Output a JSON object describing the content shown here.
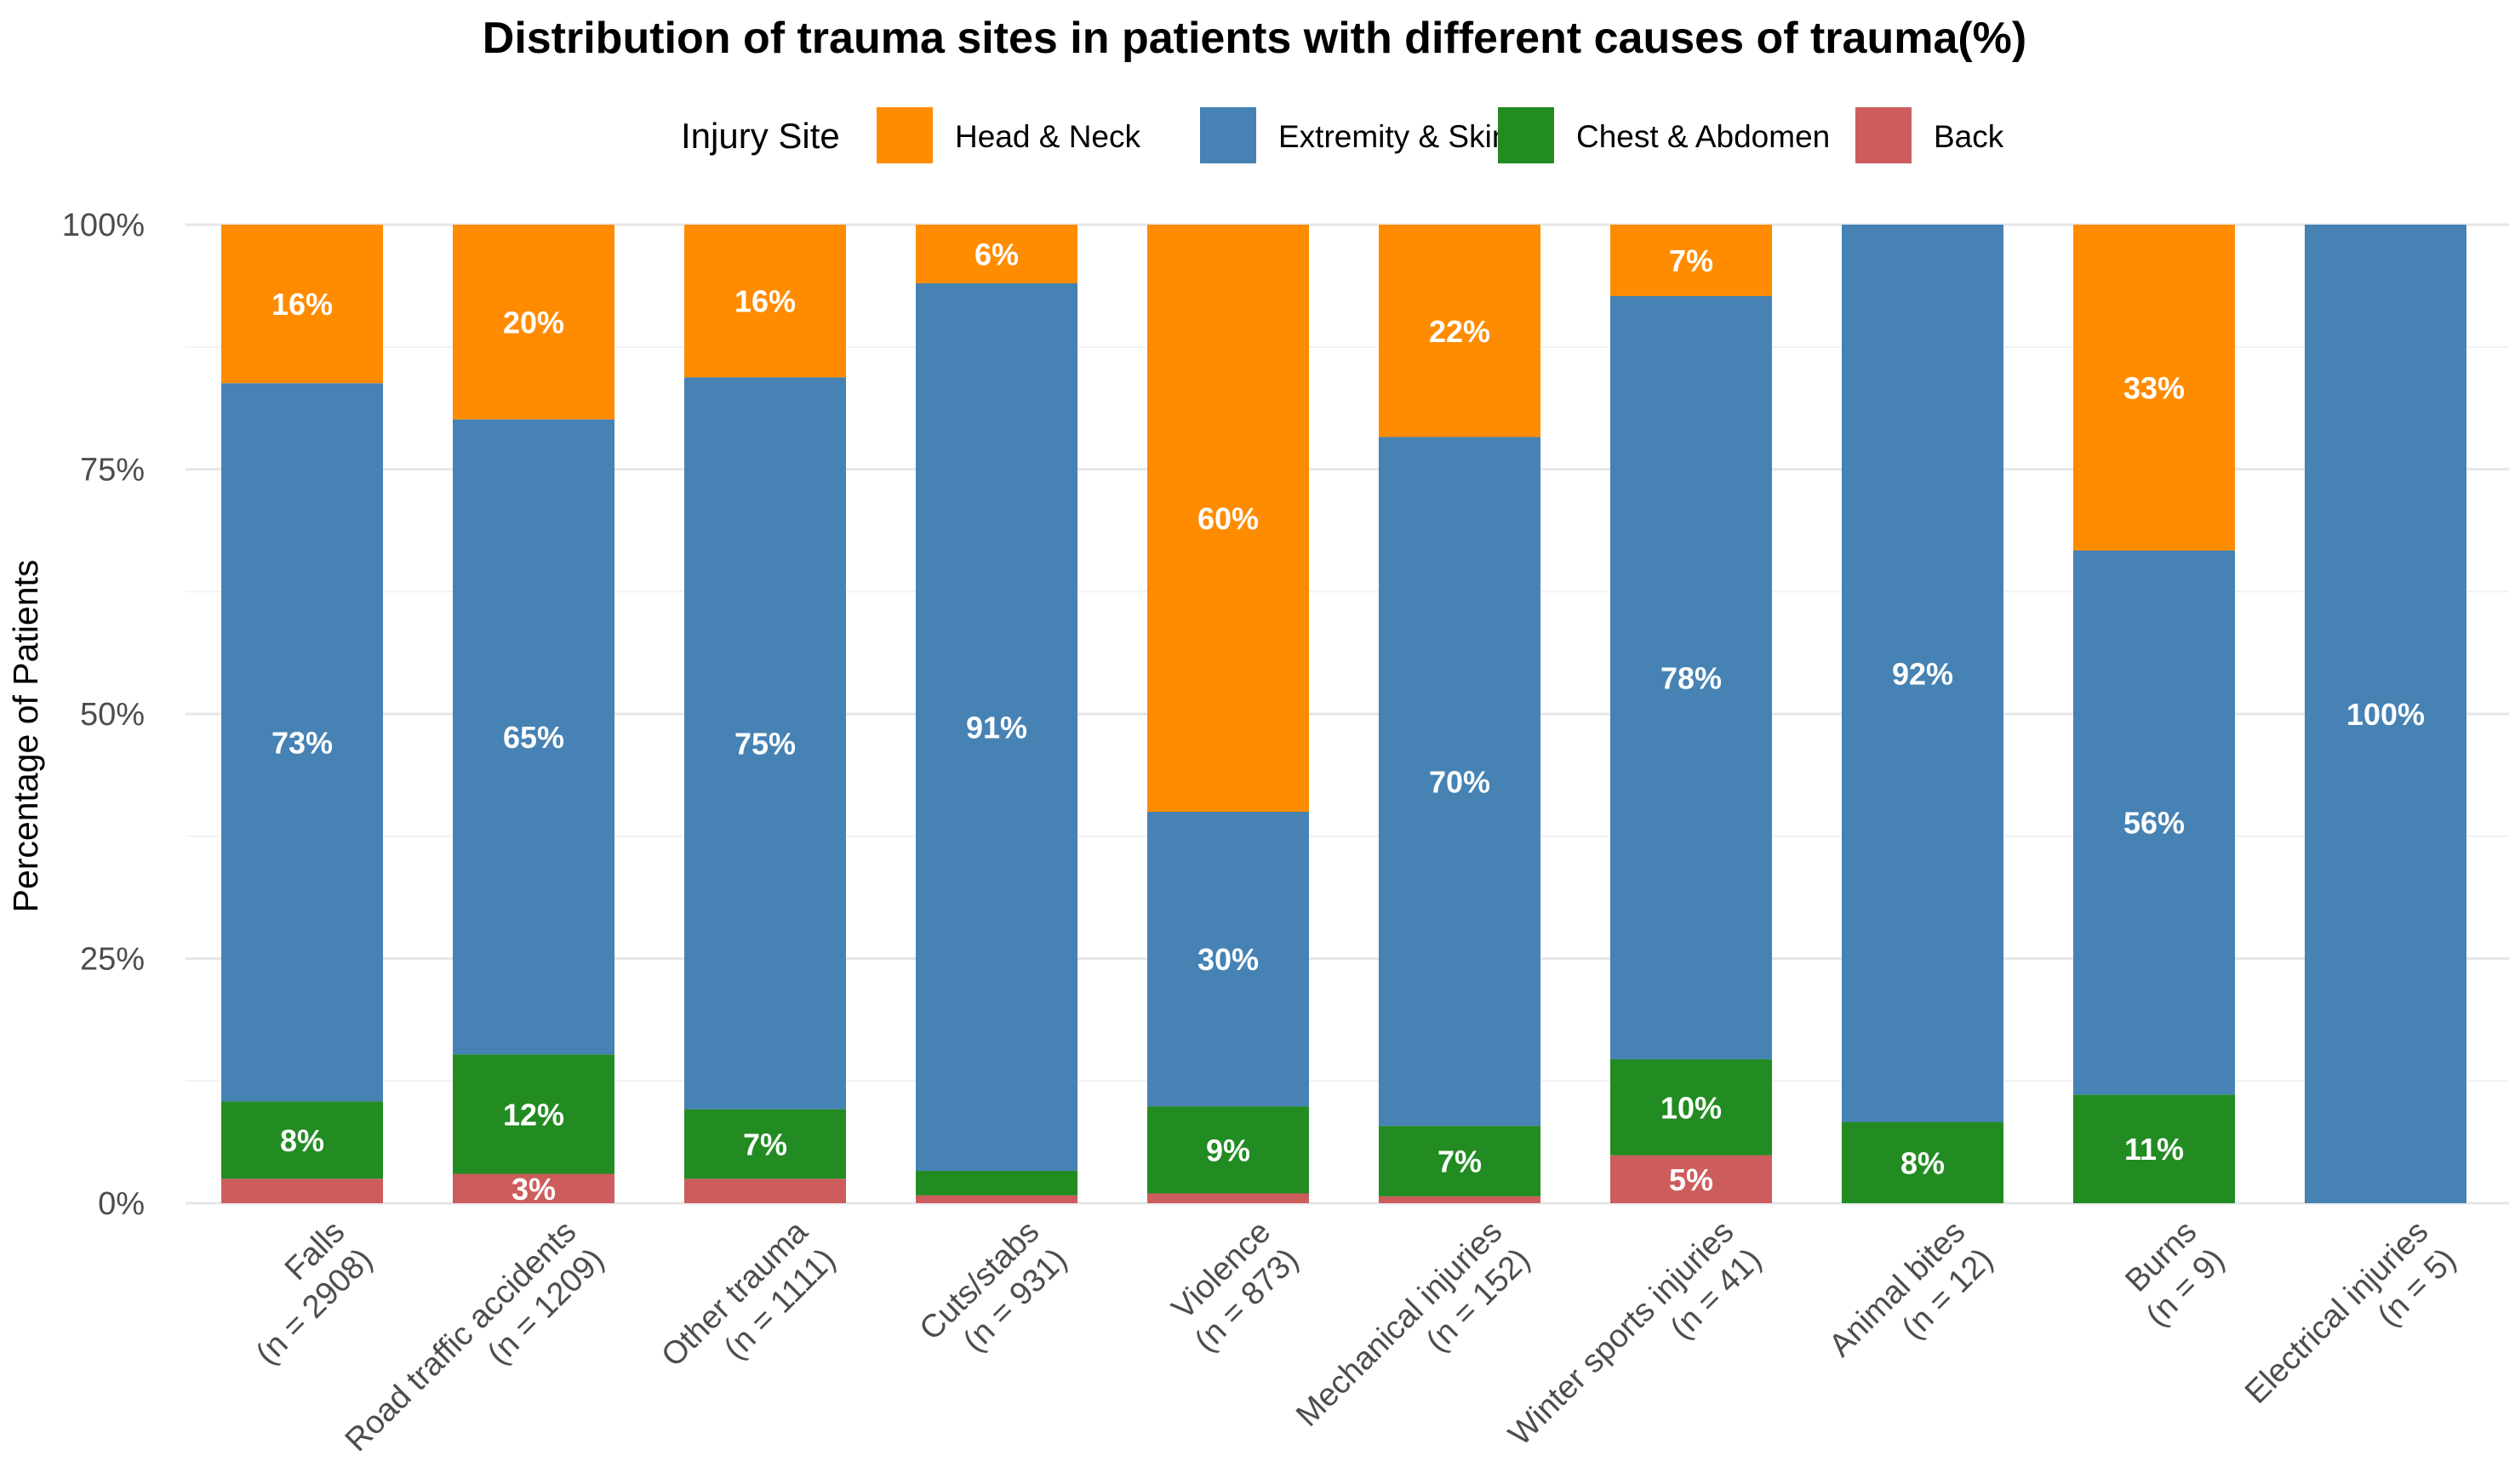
{
  "chart_data": {
    "type": "bar",
    "stacked": true,
    "title": "Distribution of trauma sites in patients with different causes of trauma(%)",
    "ylabel": "Percentage of Patients",
    "xlabel": "",
    "ylim": [
      0,
      100
    ],
    "yticks": [
      0,
      25,
      50,
      75,
      100
    ],
    "ytick_labels": [
      "0%",
      "25%",
      "50%",
      "75%",
      "100%"
    ],
    "grid": true,
    "legend": {
      "title": "Injury Site",
      "position": "top"
    },
    "categories": [
      {
        "name": "Falls",
        "n": "(n = 2908)"
      },
      {
        "name": "Road traffic accidents",
        "n": "(n = 1209)"
      },
      {
        "name": "Other trauma",
        "n": "(n = 1111)"
      },
      {
        "name": "Cuts/stabs",
        "n": "(n = 931)"
      },
      {
        "name": "Violence",
        "n": "(n = 873)"
      },
      {
        "name": "Mechanical injuries",
        "n": "(n = 152)"
      },
      {
        "name": "Winter sports injuries",
        "n": "(n = 41)"
      },
      {
        "name": "Animal bites",
        "n": "(n = 12)"
      },
      {
        "name": "Burns",
        "n": "(n = 9)"
      },
      {
        "name": "Electrical injuries",
        "n": "(n = 5)"
      }
    ],
    "series": [
      {
        "name": "Back",
        "color": "#cd5c5c",
        "values": [
          2.5,
          3,
          2.5,
          0.8,
          1,
          0.7,
          4.9,
          0,
          0,
          0
        ],
        "labels": [
          "",
          "3%",
          "",
          "",
          "",
          "",
          "5%",
          "",
          "",
          ""
        ]
      },
      {
        "name": "Chest & Abdomen",
        "color": "#228b22",
        "values": [
          7.9,
          12.2,
          7.1,
          2.5,
          8.9,
          7.2,
          9.8,
          8.3,
          11.1,
          0
        ],
        "labels": [
          "8%",
          "12%",
          "7%",
          "",
          "9%",
          "7%",
          "10%",
          "8%",
          "11%",
          ""
        ]
      },
      {
        "name": "Extremity & Skin",
        "color": "#4682b4",
        "values": [
          73.4,
          64.9,
          74.8,
          90.7,
          30.1,
          70.4,
          78.0,
          91.7,
          55.6,
          100
        ],
        "labels": [
          "73%",
          "65%",
          "75%",
          "91%",
          "30%",
          "70%",
          "78%",
          "92%",
          "56%",
          "100%"
        ]
      },
      {
        "name": "Head & Neck",
        "color": "#ff8c00",
        "values": [
          16.2,
          19.9,
          15.6,
          6.0,
          60.0,
          21.7,
          7.3,
          0,
          33.3,
          0
        ],
        "labels": [
          "16%",
          "20%",
          "16%",
          "6%",
          "60%",
          "22%",
          "7%",
          "",
          "33%",
          ""
        ]
      }
    ],
    "legend_order": [
      "Head & Neck",
      "Extremity & Skin",
      "Chest & Abdomen",
      "Back"
    ]
  }
}
